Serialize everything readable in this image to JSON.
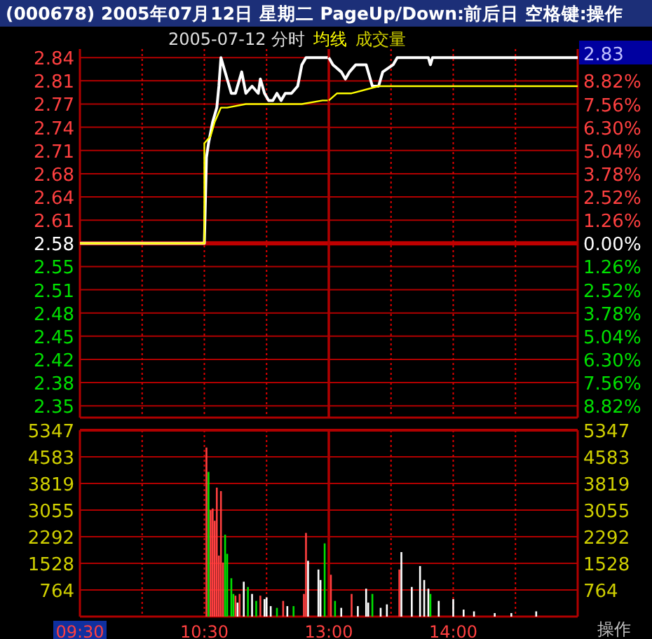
{
  "chart_data": [
    {
      "type": "line",
      "title": "(000678) 2005年07月12日 星期二 PageUp/Down:前后日 空格键:操作",
      "subtitle": "2005-07-12 分时",
      "legend": "top",
      "grid": true,
      "tick_labels": "y",
      "xlim": [
        9.5,
        11.5
      ],
      "xticks": [
        9.5,
        10,
        10.5,
        11
      ],
      "ylim": [
        2.336,
        2.852
      ],
      "yticks": [
        {
          "value": 2.84,
          "label": "2.84"
        },
        {
          "value": 2.8075,
          "label": "2.81"
        },
        {
          "value": 2.775,
          "label": "2.77"
        },
        {
          "value": 2.7425,
          "label": "2.74"
        },
        {
          "value": 2.71,
          "label": "2.71"
        },
        {
          "value": 2.6775,
          "label": "2.68"
        },
        {
          "value": 2.645,
          "label": "2.64"
        },
        {
          "value": 2.6125,
          "label": "2.61"
        },
        {
          "value": 2.58,
          "label": "2.58"
        },
        {
          "value": 2.5475,
          "label": "2.55"
        },
        {
          "value": 2.515,
          "label": "2.51"
        },
        {
          "value": 2.4825,
          "label": "2.48"
        },
        {
          "value": 2.45,
          "label": "2.45"
        },
        {
          "value": 2.4175,
          "label": "2.42"
        },
        {
          "value": 2.385,
          "label": "2.38"
        },
        {
          "value": 2.3525,
          "label": "2.35"
        }
      ],
      "ref_lines": [
        {
          "axis": "y",
          "value": 2.58,
          "color": "#c00000"
        }
      ],
      "series": [
        {
          "color": "#ffffff",
          "x": [
            9.5,
            10.5,
            10.5167,
            10.5333,
            10.5667,
            10.6,
            10.6167,
            10.6333,
            10.7167,
            10.75,
            10.8,
            10.8333,
            10.8833,
            10.9333,
            10.95,
            10.9833,
            11.0167,
            11.05,
            11.0833,
            11.1167,
            11.15,
            11.2,
            11.25,
            11.2833,
            11.3167,
            11.45,
            11.5
          ],
          "values": [
            2.58,
            2.58,
            2.7,
            2.72,
            2.75,
            2.77,
            2.8,
            2.84,
            2.79,
            2.79,
            2.82,
            2.79,
            2.8,
            2.79,
            2.81,
            2.79,
            2.78,
            2.78,
            2.79,
            2.78,
            2.79,
            2.79,
            2.8,
            2.83,
            2.84,
            2.84,
            2.84
          ]
        },
        {
          "name": "均线",
          "color": "#ffff00",
          "x": [
            9.5,
            10.5,
            10.5,
            10.55,
            10.5833,
            10.6333,
            10.6833,
            10.8333,
            11,
            11.2833,
            11.45,
            11.5
          ],
          "values": [
            2.58,
            2.58,
            2.72,
            2.73,
            2.75,
            2.77,
            2.77,
            2.775,
            2.775,
            2.775,
            2.78,
            2.78
          ]
        }
      ]
    },
    {
      "type": "line",
      "grid": true,
      "tick_labels": "y",
      "xlim": [
        13,
        15
      ],
      "xticks": [
        13,
        13.5,
        14,
        14.5
      ],
      "ylim": [
        2.336,
        2.852
      ],
      "y2lim": [
        -9.46,
        10.55
      ],
      "y2ticks": [
        {
          "value": 8.82,
          "label": "8.82%"
        },
        {
          "value": 7.56,
          "label": "7.56%"
        },
        {
          "value": 6.3,
          "label": "6.30%"
        },
        {
          "value": 5.04,
          "label": "5.04%"
        },
        {
          "value": 3.78,
          "label": "3.78%"
        },
        {
          "value": 2.52,
          "label": "2.52%"
        },
        {
          "value": 1.26,
          "label": "1.26%"
        },
        {
          "value": 0,
          "label": "0.00%"
        },
        {
          "value": -1.26,
          "label": "1.26%"
        },
        {
          "value": -2.52,
          "label": "2.52%"
        },
        {
          "value": -3.78,
          "label": "3.78%"
        },
        {
          "value": -5.04,
          "label": "5.04%"
        },
        {
          "value": -6.3,
          "label": "6.30%"
        },
        {
          "value": -7.56,
          "label": "7.56%"
        },
        {
          "value": -8.82,
          "label": "8.82%"
        }
      ],
      "ref_lines": [
        {
          "axis": "y",
          "value": 2.58,
          "color": "#c00000"
        }
      ],
      "annotations": [
        "2.83"
      ],
      "series": [
        {
          "color": "#ffffff",
          "x": [
            13,
            13.0333,
            13.1,
            13.1333,
            13.1667,
            13.2167,
            13.3,
            13.35,
            13.4,
            13.4333,
            13.5167,
            13.55,
            13.8,
            13.8167,
            13.8333,
            15
          ],
          "values": [
            2.84,
            2.83,
            2.82,
            2.81,
            2.82,
            2.83,
            2.83,
            2.8,
            2.8,
            2.82,
            2.83,
            2.84,
            2.84,
            2.83,
            2.84,
            2.84
          ]
        },
        {
          "color": "#ffff00",
          "x": [
            13,
            13.0667,
            13.1833,
            13.4,
            13.85,
            15
          ],
          "values": [
            2.78,
            2.79,
            2.79,
            2.8,
            2.8,
            2.8
          ]
        }
      ]
    },
    {
      "type": "bar",
      "legend": "top",
      "grid": true,
      "xlim": [
        9.5,
        11.5
      ],
      "xticks": [
        {
          "value": 9.5,
          "label": "09:30"
        },
        {
          "value": 10,
          "label": null
        },
        {
          "value": 10.5,
          "label": "10:30"
        },
        {
          "value": 11,
          "label": null
        }
      ],
      "ylim": [
        0,
        5347
      ],
      "yticks": [
        764,
        1528,
        2292,
        3055,
        3819,
        4583,
        5347
      ],
      "x": [
        10.5167,
        10.5333,
        10.55,
        10.5667,
        10.5833,
        10.6,
        10.6167,
        10.6333,
        10.65,
        10.6667,
        10.6833,
        10.7167,
        10.7333,
        10.75,
        10.7667,
        10.7833,
        10.8167,
        10.85,
        10.8833,
        10.9167,
        10.95,
        10.9833,
        11,
        11.0333,
        11.0833,
        11.1333,
        11.1667,
        11.2167,
        11.3,
        11.3167,
        11.3333,
        11.4167,
        11.4333,
        11.4667
      ],
      "series": [
        {
          "name": "成交量",
          "color": "#d0d000",
          "values": [
            4850,
            4150,
            3050,
            3100,
            2750,
            3700,
            1750,
            3600,
            1550,
            2350,
            1800,
            1100,
            650,
            600,
            400,
            650,
            1000,
            850,
            650,
            450,
            600,
            500,
            550,
            300,
            250,
            450,
            300,
            300,
            650,
            2400,
            1600,
            1350,
            1050,
            2100
          ],
          "colors": [
            "#ff4040",
            "#00e000",
            "#ff4040",
            "#ff4040",
            "#ff4040",
            "#ff4040",
            "#ff4040",
            "#ff4040",
            "#ff4040",
            "#00e000",
            "#00e000",
            "#00e000",
            "#00e000",
            "#ff4040",
            "#ffffff",
            "#ff4040",
            "#ffffff",
            "#00e000",
            "#ffffff",
            "#00e000",
            "#ff4040",
            "#ffffff",
            "#ffffff",
            "#ffffff",
            "#00e000",
            "#ff4040",
            "#ffffff",
            "#00e000",
            "#ff4040",
            "#ff4040",
            "#ffffff",
            "#ffffff",
            "#ffffff",
            "#00e000"
          ]
        }
      ]
    },
    {
      "type": "bar",
      "grid": true,
      "xlim": [
        13,
        15
      ],
      "xticks": [
        {
          "value": 13,
          "label": "13:00"
        },
        {
          "value": 13.5,
          "label": null
        },
        {
          "value": 14,
          "label": "14:00"
        },
        {
          "value": 14.5,
          "label": null
        }
      ],
      "y2lim": [
        0,
        5347
      ],
      "y2ticks": [
        764,
        1528,
        2292,
        3055,
        3819,
        4583,
        5347
      ],
      "annotations": [
        "操作"
      ],
      "x": [
        13.0167,
        13.05,
        13.1,
        13.1833,
        13.2333,
        13.3,
        13.3167,
        13.35,
        13.4167,
        13.4667,
        13.5667,
        13.5833,
        13.6667,
        13.7333,
        13.7667,
        13.8,
        13.8167,
        13.8833,
        14,
        14.0833,
        14.1667,
        14.3333,
        14.4667,
        14.6667
      ],
      "series": [
        {
          "axis": "y2",
          "values": [
            1200,
            450,
            250,
            650,
            300,
            800,
            400,
            650,
            250,
            350,
            1350,
            1850,
            850,
            1450,
            1050,
            800,
            650,
            450,
            500,
            200,
            150,
            100,
            100,
            150
          ],
          "colors": [
            "#ff4040",
            "#00e000",
            "#ffffff",
            "#ff4040",
            "#ffffff",
            "#ffffff",
            "#ffffff",
            "#00e000",
            "#ffffff",
            "#ffffff",
            "#ff4040",
            "#ffffff",
            "#ffffff",
            "#ffffff",
            "#ffffff",
            "#ffffff",
            "#00e000",
            "#ffffff",
            "#ffffff",
            "#ffffff",
            "#ffffff",
            "#ffffff",
            "#ffffff",
            "#ffffff"
          ]
        }
      ]
    }
  ]
}
